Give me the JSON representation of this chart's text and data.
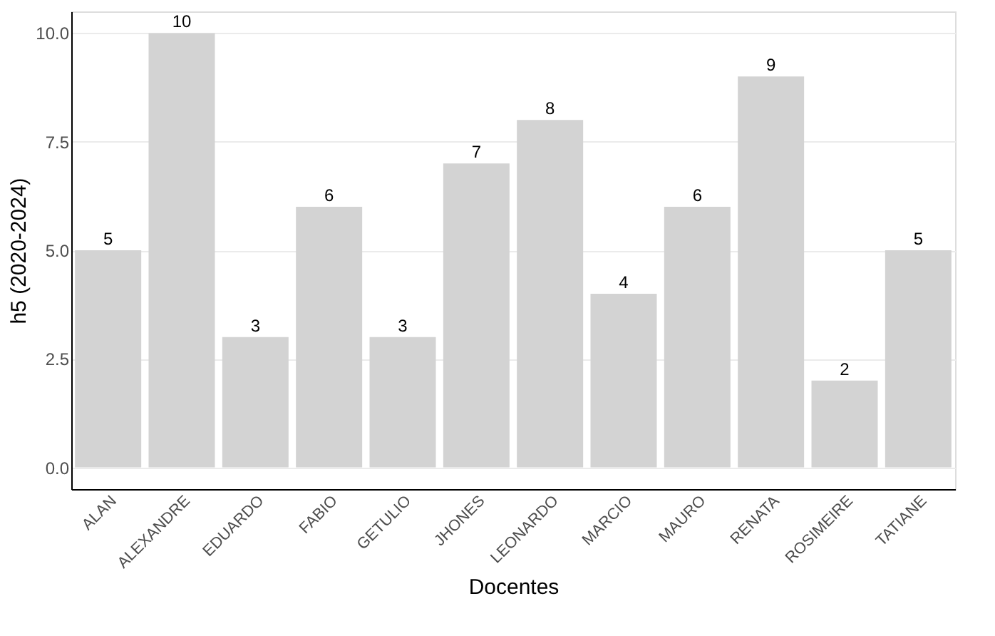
{
  "chart_data": {
    "type": "bar",
    "xlabel": "Docentes",
    "ylabel": "h5 (2020-2024)",
    "categories": [
      "ALAN",
      "ALEXANDRE",
      "EDUARDO",
      "FABIO",
      "GETULIO",
      "JHONES",
      "LEONARDO",
      "MARCIO",
      "MAURO",
      "RENATA",
      "ROSIMEIRE",
      "TATIANE"
    ],
    "values": [
      5,
      10,
      3,
      6,
      3,
      7,
      8,
      4,
      6,
      9,
      2,
      5
    ],
    "color": "#d3d3d3",
    "ylim": [
      -0.5,
      10.5
    ],
    "yticks": [
      {
        "value": 0,
        "label": "0.0"
      },
      {
        "value": 2.5,
        "label": "2.5"
      },
      {
        "value": 5,
        "label": "5.0"
      },
      {
        "value": 7.5,
        "label": "7.5"
      },
      {
        "value": 10,
        "label": "10.0"
      }
    ],
    "grid": "y",
    "data_labels": true
  }
}
